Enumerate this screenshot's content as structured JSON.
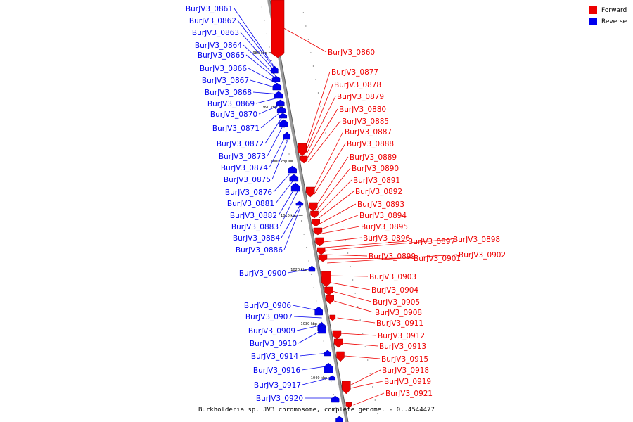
{
  "caption": "Burkholderia sp. JV3 chromosome, complete genome. - 0..4544477",
  "legend": [
    {
      "label": "Forward",
      "color": "#ee0000"
    },
    {
      "label": "Reverse",
      "color": "#0000ee"
    }
  ],
  "colors": {
    "forward": "#ee0000",
    "reverse": "#0000ee",
    "backbone": "#9a9a9a"
  },
  "ticks": [
    {
      "label": "980 kbp"
    },
    {
      "label": "990 kbp"
    },
    {
      "label": "1000 kbp"
    },
    {
      "label": "1010 kbp"
    },
    {
      "label": "1020 kbp"
    },
    {
      "label": "1030 kbp"
    },
    {
      "label": "1040 kbp"
    }
  ],
  "reverse_genes": [
    "BurJV3_0861",
    "BurJV3_0862",
    "BurJV3_0863",
    "BurJV3_0864",
    "BurJV3_0865",
    "BurJV3_0866",
    "BurJV3_0867",
    "BurJV3_0868",
    "BurJV3_0869",
    "BurJV3_0870",
    "BurJV3_0871",
    "BurJV3_0872",
    "BurJV3_0873",
    "BurJV3_0874",
    "BurJV3_0875",
    "BurJV3_0876",
    "BurJV3_0881",
    "BurJV3_0882",
    "BurJV3_0883",
    "BurJV3_0884",
    "BurJV3_0886",
    "BurJV3_0900",
    "BurJV3_0906",
    "BurJV3_0907",
    "BurJV3_0909",
    "BurJV3_0910",
    "BurJV3_0914",
    "BurJV3_0916",
    "BurJV3_0917",
    "BurJV3_0920"
  ],
  "forward_genes": [
    "BurJV3_0860",
    "BurJV3_0877",
    "BurJV3_0878",
    "BurJV3_0879",
    "BurJV3_0880",
    "BurJV3_0885",
    "BurJV3_0887",
    "BurJV3_0888",
    "BurJV3_0889",
    "BurJV3_0890",
    "BurJV3_0891",
    "BurJV3_0892",
    "BurJV3_0893",
    "BurJV3_0894",
    "BurJV3_0895",
    "BurJV3_0896",
    "BurJV3_0897",
    "BurJV3_0898",
    "BurJV3_0899",
    "BurJV3_0901",
    "BurJV3_0902",
    "BurJV3_0903",
    "BurJV3_0904",
    "BurJV3_0905",
    "BurJV3_0908",
    "BurJV3_0911",
    "BurJV3_0912",
    "BurJV3_0913",
    "BurJV3_0915",
    "BurJV3_0918",
    "BurJV3_0919",
    "BurJV3_0921"
  ]
}
